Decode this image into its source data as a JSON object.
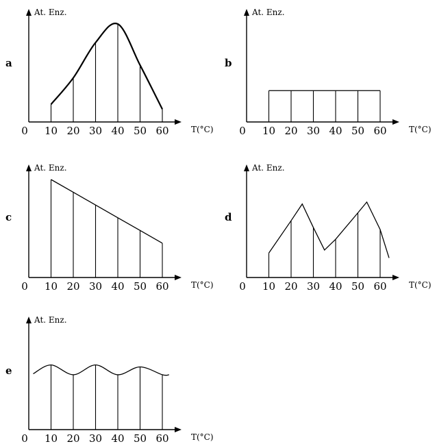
{
  "chart_data": [
    {
      "panel": "a",
      "type": "line",
      "ylabel": "At. Enz.",
      "xlabel": "T(°C)",
      "x_ticks": [
        0,
        10,
        20,
        30,
        40,
        50,
        60
      ],
      "x": [
        10,
        20,
        30,
        40,
        50,
        60
      ],
      "values": [
        0.18,
        0.45,
        0.81,
        1.0,
        0.58,
        0.13
      ],
      "shape": "bell"
    },
    {
      "panel": "b",
      "type": "line",
      "ylabel": "At. Enz.",
      "xlabel": "T(°C)",
      "x_ticks": [
        0,
        10,
        20,
        30,
        40,
        50,
        60
      ],
      "x": [
        10,
        20,
        30,
        40,
        50,
        60
      ],
      "values": [
        0.32,
        0.32,
        0.32,
        0.32,
        0.32,
        0.32
      ],
      "shape": "constant"
    },
    {
      "panel": "c",
      "type": "line",
      "ylabel": "At. Enz.",
      "xlabel": "T(°C)",
      "x_ticks": [
        0,
        10,
        20,
        30,
        40,
        50,
        60
      ],
      "x": [
        10,
        20,
        30,
        40,
        50,
        60
      ],
      "values": [
        1.0,
        0.87,
        0.74,
        0.61,
        0.48,
        0.35
      ],
      "shape": "linear-decrease"
    },
    {
      "panel": "d",
      "type": "line",
      "ylabel": "At. Enz.",
      "xlabel": "T(°C)",
      "x_ticks": [
        0,
        10,
        20,
        30,
        40,
        50,
        60
      ],
      "x": [
        10,
        20,
        25,
        30,
        35,
        40,
        50,
        54,
        60,
        64
      ],
      "values": [
        0.25,
        0.58,
        0.75,
        0.51,
        0.28,
        0.39,
        0.66,
        0.77,
        0.49,
        0.2
      ],
      "drop_lines_at": [
        10,
        20,
        30,
        40,
        50,
        60
      ],
      "shape": "zigzag"
    },
    {
      "panel": "e",
      "type": "line",
      "ylabel": "At. Enz.",
      "xlabel": "T(°C)",
      "x_ticks": [
        0,
        10,
        20,
        30,
        40,
        50,
        60
      ],
      "x": [
        2,
        10,
        20,
        30,
        40,
        50,
        60,
        63
      ],
      "values": [
        0.57,
        0.66,
        0.56,
        0.66,
        0.56,
        0.64,
        0.56,
        0.56
      ],
      "drop_lines_at": [
        10,
        20,
        30,
        40,
        50,
        60
      ],
      "shape": "wavy"
    }
  ]
}
